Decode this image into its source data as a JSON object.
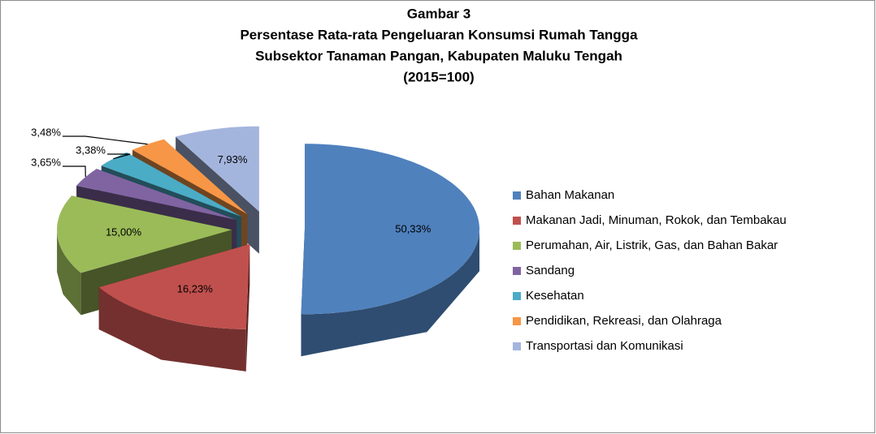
{
  "chart_data": {
    "type": "pie3d",
    "title": [
      "Gambar 3",
      "Persentase Rata-rata Pengeluaran Konsumsi Rumah Tangga",
      "Subsektor Tanaman Pangan,  Kabupaten Maluku Tengah",
      "(2015=100)"
    ],
    "categories": [
      "Bahan Makanan",
      "Makanan Jadi, Minuman, Rokok, dan Tembakau",
      "Perumahan, Air, Listrik, Gas, dan Bahan Bakar",
      "Sandang",
      "Kesehatan",
      "Pendidikan, Rekreasi, dan Olahraga",
      "Transportasi dan Komunikasi"
    ],
    "values": [
      50.33,
      16.23,
      15.0,
      3.65,
      3.38,
      3.48,
      7.93
    ],
    "value_labels": [
      "50,33%",
      "16,23%",
      "15,00%",
      "3,65%",
      "3,38%",
      "3,48%",
      "7,93%"
    ],
    "colors": [
      "#4f81bd",
      "#c0504d",
      "#9bbb59",
      "#8064a2",
      "#4bacc6",
      "#f79646",
      "#a4b5dd"
    ],
    "legend": "right"
  }
}
